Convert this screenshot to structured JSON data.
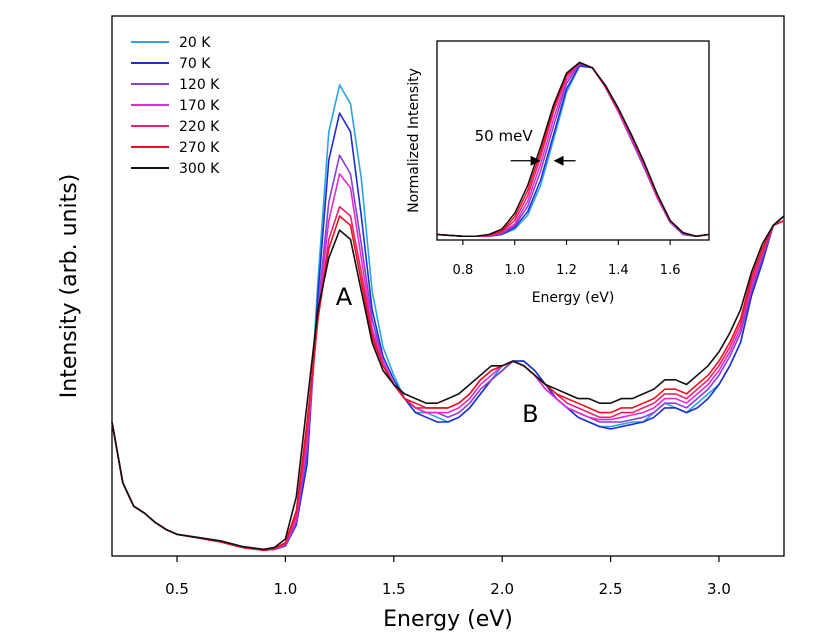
{
  "chart_data": [
    {
      "type": "line",
      "xlabel": "Energy (eV)",
      "ylabel": "Intensity (arb. units)",
      "xlim": [
        0.2,
        3.3
      ],
      "ylim": [
        0,
        1
      ],
      "x_ticks": [
        0.5,
        1.0,
        1.5,
        2.0,
        2.5,
        3.0
      ],
      "x_tick_labels": [
        "0.5",
        "1.0",
        "1.5",
        "2.0",
        "2.5",
        "3.0"
      ],
      "y_ticks_shown": false,
      "grid": false,
      "legend_position": "top-left",
      "annotations": [
        {
          "text": "A",
          "x": 1.27,
          "y": 0.53
        },
        {
          "text": "B",
          "x": 2.13,
          "y": 0.28
        }
      ],
      "x": [
        0.2,
        0.25,
        0.3,
        0.35,
        0.4,
        0.45,
        0.5,
        0.6,
        0.7,
        0.8,
        0.9,
        0.95,
        1.0,
        1.05,
        1.1,
        1.15,
        1.2,
        1.25,
        1.3,
        1.35,
        1.4,
        1.45,
        1.5,
        1.55,
        1.6,
        1.65,
        1.7,
        1.75,
        1.8,
        1.85,
        1.9,
        1.95,
        2.0,
        2.05,
        2.1,
        2.15,
        2.2,
        2.25,
        2.3,
        2.35,
        2.4,
        2.45,
        2.5,
        2.55,
        2.6,
        2.65,
        2.7,
        2.75,
        2.8,
        2.85,
        2.9,
        2.95,
        3.0,
        3.05,
        3.1,
        3.15,
        3.2,
        3.25,
        3.3
      ],
      "series": [
        {
          "name": "20 K",
          "color": "#29a3e2",
          "values": [
            0.28,
            0.15,
            0.1,
            0.085,
            0.065,
            0.05,
            0.04,
            0.033,
            0.025,
            0.012,
            0.006,
            0.008,
            0.015,
            0.06,
            0.2,
            0.58,
            0.9,
            1.0,
            0.96,
            0.8,
            0.56,
            0.44,
            0.38,
            0.33,
            0.3,
            0.3,
            0.29,
            0.28,
            0.29,
            0.31,
            0.34,
            0.37,
            0.4,
            0.41,
            0.41,
            0.39,
            0.36,
            0.33,
            0.31,
            0.29,
            0.28,
            0.27,
            0.27,
            0.275,
            0.28,
            0.28,
            0.3,
            0.32,
            0.31,
            0.3,
            0.32,
            0.34,
            0.36,
            0.4,
            0.45,
            0.55,
            0.62,
            0.7,
            0.72
          ]
        },
        {
          "name": "70 K",
          "color": "#1f2ecf",
          "values": [
            0.28,
            0.15,
            0.1,
            0.085,
            0.065,
            0.05,
            0.04,
            0.032,
            0.024,
            0.012,
            0.006,
            0.008,
            0.015,
            0.06,
            0.19,
            0.55,
            0.84,
            0.94,
            0.9,
            0.72,
            0.52,
            0.42,
            0.37,
            0.33,
            0.3,
            0.29,
            0.28,
            0.28,
            0.29,
            0.31,
            0.34,
            0.37,
            0.39,
            0.41,
            0.41,
            0.39,
            0.36,
            0.33,
            0.31,
            0.29,
            0.28,
            0.27,
            0.265,
            0.27,
            0.275,
            0.28,
            0.29,
            0.31,
            0.31,
            0.3,
            0.31,
            0.33,
            0.36,
            0.4,
            0.45,
            0.55,
            0.62,
            0.7,
            0.72
          ]
        },
        {
          "name": "120 K",
          "color": "#8a3fd3",
          "values": [
            0.28,
            0.15,
            0.1,
            0.085,
            0.065,
            0.05,
            0.04,
            0.032,
            0.024,
            0.012,
            0.006,
            0.008,
            0.016,
            0.065,
            0.22,
            0.52,
            0.75,
            0.85,
            0.81,
            0.66,
            0.5,
            0.41,
            0.36,
            0.33,
            0.31,
            0.3,
            0.3,
            0.29,
            0.3,
            0.32,
            0.35,
            0.37,
            0.39,
            0.41,
            0.4,
            0.38,
            0.35,
            0.33,
            0.31,
            0.3,
            0.29,
            0.28,
            0.28,
            0.28,
            0.285,
            0.29,
            0.3,
            0.32,
            0.32,
            0.31,
            0.33,
            0.35,
            0.38,
            0.42,
            0.47,
            0.56,
            0.63,
            0.7,
            0.71
          ]
        },
        {
          "name": "170 K",
          "color": "#e22bd0",
          "values": [
            0.28,
            0.15,
            0.1,
            0.085,
            0.065,
            0.05,
            0.04,
            0.032,
            0.024,
            0.012,
            0.006,
            0.008,
            0.018,
            0.07,
            0.24,
            0.51,
            0.71,
            0.81,
            0.78,
            0.63,
            0.48,
            0.41,
            0.36,
            0.33,
            0.31,
            0.3,
            0.3,
            0.3,
            0.31,
            0.33,
            0.36,
            0.38,
            0.4,
            0.41,
            0.4,
            0.38,
            0.35,
            0.33,
            0.31,
            0.3,
            0.29,
            0.285,
            0.285,
            0.29,
            0.295,
            0.3,
            0.31,
            0.33,
            0.33,
            0.32,
            0.34,
            0.36,
            0.39,
            0.43,
            0.48,
            0.57,
            0.64,
            0.7,
            0.71
          ]
        },
        {
          "name": "220 K",
          "color": "#ee1f6b",
          "values": [
            0.28,
            0.15,
            0.1,
            0.085,
            0.065,
            0.05,
            0.04,
            0.032,
            0.024,
            0.012,
            0.006,
            0.009,
            0.02,
            0.08,
            0.26,
            0.5,
            0.67,
            0.74,
            0.72,
            0.6,
            0.47,
            0.4,
            0.36,
            0.33,
            0.31,
            0.31,
            0.31,
            0.31,
            0.32,
            0.34,
            0.37,
            0.39,
            0.4,
            0.41,
            0.4,
            0.38,
            0.36,
            0.34,
            0.32,
            0.31,
            0.3,
            0.29,
            0.29,
            0.3,
            0.3,
            0.31,
            0.32,
            0.34,
            0.34,
            0.33,
            0.35,
            0.37,
            0.4,
            0.44,
            0.49,
            0.58,
            0.64,
            0.7,
            0.71
          ]
        },
        {
          "name": "270 K",
          "color": "#e8141e",
          "values": [
            0.28,
            0.15,
            0.1,
            0.085,
            0.065,
            0.05,
            0.04,
            0.032,
            0.024,
            0.012,
            0.006,
            0.01,
            0.022,
            0.09,
            0.28,
            0.5,
            0.65,
            0.72,
            0.7,
            0.58,
            0.46,
            0.4,
            0.36,
            0.33,
            0.32,
            0.31,
            0.31,
            0.31,
            0.32,
            0.34,
            0.37,
            0.39,
            0.4,
            0.41,
            0.4,
            0.38,
            0.36,
            0.34,
            0.33,
            0.32,
            0.31,
            0.3,
            0.3,
            0.31,
            0.31,
            0.32,
            0.33,
            0.35,
            0.35,
            0.34,
            0.36,
            0.38,
            0.41,
            0.45,
            0.5,
            0.59,
            0.65,
            0.7,
            0.71
          ]
        },
        {
          "name": "300 K",
          "color": "#111111",
          "values": [
            0.28,
            0.15,
            0.1,
            0.085,
            0.065,
            0.05,
            0.04,
            0.033,
            0.026,
            0.014,
            0.008,
            0.012,
            0.03,
            0.12,
            0.32,
            0.52,
            0.63,
            0.69,
            0.67,
            0.56,
            0.45,
            0.39,
            0.36,
            0.34,
            0.33,
            0.32,
            0.32,
            0.33,
            0.34,
            0.36,
            0.38,
            0.4,
            0.4,
            0.41,
            0.4,
            0.38,
            0.36,
            0.35,
            0.34,
            0.33,
            0.33,
            0.32,
            0.32,
            0.33,
            0.33,
            0.34,
            0.35,
            0.37,
            0.37,
            0.36,
            0.38,
            0.4,
            0.43,
            0.47,
            0.52,
            0.6,
            0.66,
            0.7,
            0.72
          ]
        }
      ]
    },
    {
      "type": "line",
      "xlabel": "Energy (eV)",
      "ylabel": "Normalized Intensity",
      "xlim": [
        0.7,
        1.75
      ],
      "ylim": [
        0,
        1.06
      ],
      "x_ticks": [
        0.8,
        1.0,
        1.2,
        1.4,
        1.6
      ],
      "x_tick_labels": [
        "0.8",
        "1.0",
        "1.2",
        "1.4",
        "1.6"
      ],
      "y_ticks_shown": false,
      "grid": false,
      "annotations": [
        {
          "text": "50 meV",
          "x_from": 1.1,
          "x_to": 1.15,
          "y": 0.52
        }
      ],
      "x": [
        0.7,
        0.75,
        0.8,
        0.85,
        0.9,
        0.95,
        1.0,
        1.05,
        1.1,
        1.15,
        1.2,
        1.25,
        1.3,
        1.35,
        1.4,
        1.45,
        1.5,
        1.55,
        1.6,
        1.65,
        1.7,
        1.75
      ],
      "series": [
        {
          "name": "20 K",
          "color": "#29a3e2",
          "values": [
            0.02,
            0.015,
            0.01,
            0.01,
            0.01,
            0.02,
            0.05,
            0.13,
            0.3,
            0.56,
            0.83,
            0.98,
            0.97,
            0.86,
            0.72,
            0.57,
            0.41,
            0.23,
            0.09,
            0.02,
            0.01,
            0.02
          ]
        },
        {
          "name": "70 K",
          "color": "#1f2ecf",
          "values": [
            0.02,
            0.015,
            0.01,
            0.01,
            0.01,
            0.02,
            0.06,
            0.15,
            0.33,
            0.59,
            0.85,
            0.98,
            0.97,
            0.86,
            0.72,
            0.56,
            0.4,
            0.23,
            0.09,
            0.02,
            0.01,
            0.02
          ]
        },
        {
          "name": "120 K",
          "color": "#8a3fd3",
          "values": [
            0.02,
            0.015,
            0.01,
            0.01,
            0.01,
            0.025,
            0.07,
            0.18,
            0.38,
            0.64,
            0.88,
            0.99,
            0.97,
            0.86,
            0.72,
            0.56,
            0.4,
            0.23,
            0.09,
            0.02,
            0.01,
            0.02
          ]
        },
        {
          "name": "170 K",
          "color": "#e22bd0",
          "values": [
            0.02,
            0.015,
            0.01,
            0.01,
            0.01,
            0.03,
            0.08,
            0.21,
            0.42,
            0.68,
            0.9,
            1.0,
            0.97,
            0.86,
            0.72,
            0.57,
            0.41,
            0.23,
            0.09,
            0.03,
            0.01,
            0.02
          ]
        },
        {
          "name": "220 K",
          "color": "#ee1f6b",
          "values": [
            0.02,
            0.015,
            0.01,
            0.01,
            0.015,
            0.035,
            0.1,
            0.24,
            0.46,
            0.72,
            0.92,
            1.0,
            0.97,
            0.86,
            0.73,
            0.58,
            0.42,
            0.24,
            0.1,
            0.03,
            0.01,
            0.02
          ]
        },
        {
          "name": "270 K",
          "color": "#e8141e",
          "values": [
            0.02,
            0.015,
            0.01,
            0.01,
            0.015,
            0.04,
            0.12,
            0.27,
            0.49,
            0.74,
            0.93,
            1.0,
            0.97,
            0.87,
            0.74,
            0.59,
            0.43,
            0.25,
            0.1,
            0.03,
            0.01,
            0.02
          ]
        },
        {
          "name": "300 K",
          "color": "#111111",
          "values": [
            0.02,
            0.015,
            0.01,
            0.01,
            0.02,
            0.05,
            0.14,
            0.3,
            0.52,
            0.76,
            0.94,
            1.0,
            0.97,
            0.87,
            0.74,
            0.59,
            0.43,
            0.25,
            0.1,
            0.03,
            0.01,
            0.02
          ]
        }
      ]
    }
  ]
}
